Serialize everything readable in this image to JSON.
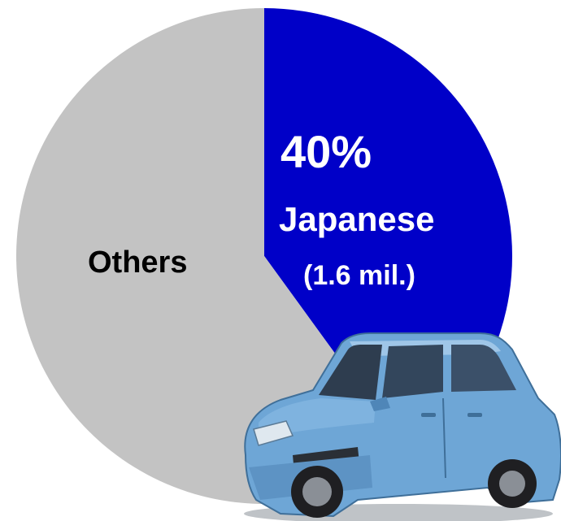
{
  "chart_data": {
    "type": "pie",
    "slices": [
      {
        "key": "japanese",
        "percent_label": "40%",
        "name": "Japanese",
        "sublabel": "(1.6 mil.)",
        "value": 40,
        "color": "#0000c8",
        "label_color": "#ffffff"
      },
      {
        "key": "others",
        "name": "Others",
        "value": 60,
        "color": "#c3c3c3",
        "label_color": "#000000"
      }
    ],
    "start": "12 o'clock",
    "direction": "clockwise",
    "legend": "none"
  },
  "image": {
    "icon": "car-icon",
    "color": "#6ea6d6"
  }
}
